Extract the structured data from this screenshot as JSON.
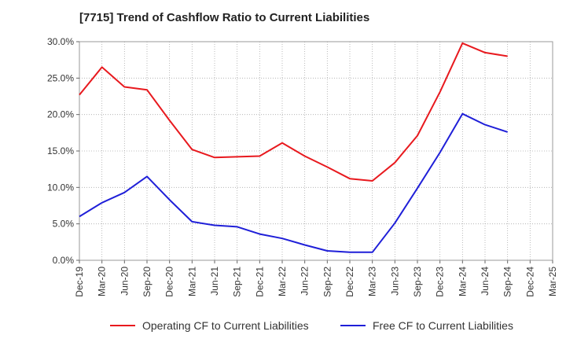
{
  "chart_data": {
    "type": "line",
    "title": "[7715]  Trend of Cashflow Ratio to Current Liabilities",
    "xlabel": "",
    "ylabel": "",
    "categories": [
      "Dec-19",
      "Mar-20",
      "Jun-20",
      "Sep-20",
      "Dec-20",
      "Mar-21",
      "Jun-21",
      "Sep-21",
      "Dec-21",
      "Mar-22",
      "Jun-22",
      "Sep-22",
      "Dec-22",
      "Mar-23",
      "Jun-23",
      "Sep-23",
      "Dec-23",
      "Mar-24",
      "Jun-24",
      "Sep-24",
      "Dec-24",
      "Mar-25"
    ],
    "ylim": [
      0,
      30
    ],
    "yticks": [
      0,
      5,
      10,
      15,
      20,
      25,
      30
    ],
    "ytick_labels": [
      "0.0%",
      "5.0%",
      "10.0%",
      "15.0%",
      "20.0%",
      "25.0%",
      "30.0%"
    ],
    "grid": true,
    "legend_position": "bottom",
    "series": [
      {
        "name": "Operating CF to Current Liabilities",
        "color": "#e8191e",
        "values": [
          22.7,
          26.5,
          23.8,
          23.4,
          19.2,
          15.2,
          14.1,
          14.2,
          14.3,
          16.1,
          14.3,
          12.8,
          11.2,
          10.9,
          13.4,
          17.1,
          23.1,
          29.8,
          28.5,
          28.0,
          null,
          null
        ]
      },
      {
        "name": "Free CF to Current Liabilities",
        "color": "#1f1fd8",
        "values": [
          6.0,
          7.9,
          9.3,
          11.5,
          8.3,
          5.3,
          4.8,
          4.6,
          3.6,
          3.0,
          2.1,
          1.3,
          1.1,
          1.1,
          5.1,
          9.9,
          14.8,
          20.1,
          18.6,
          17.6,
          null,
          null
        ]
      }
    ]
  }
}
